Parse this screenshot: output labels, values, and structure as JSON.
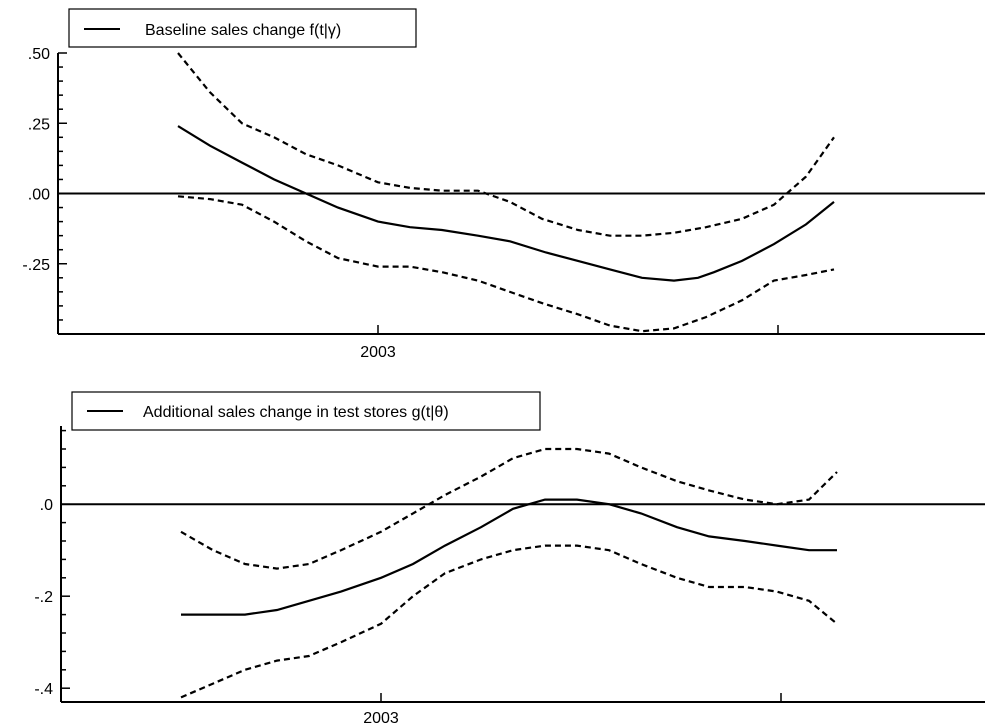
{
  "chart_data": [
    {
      "type": "line",
      "legend": "Baseline sales change f(t|γ)",
      "y_tick_labels": [
        ".50",
        ".25",
        ".00",
        "-.25"
      ],
      "y_tick_values": [
        0.5,
        0.25,
        0.0,
        -0.25
      ],
      "ylim": [
        -0.5,
        0.5
      ],
      "x_tick_labels": [
        "2003"
      ],
      "x_tick_values": [
        2003.0
      ],
      "xlim": [
        2002.25,
        2004.2
      ],
      "series": [
        {
          "role": "estimate",
          "style": "solid",
          "x": [
            2002.5,
            2002.58,
            2002.66,
            2002.74,
            2002.82,
            2002.9,
            2003.0,
            2003.08,
            2003.16,
            2003.25,
            2003.33,
            2003.42,
            2003.5,
            2003.58,
            2003.66,
            2003.74,
            2003.8,
            2003.84,
            2003.91,
            2003.99,
            2004.07,
            2004.14
          ],
          "y": [
            0.24,
            0.17,
            0.11,
            0.05,
            0.0,
            -0.05,
            -0.1,
            -0.12,
            -0.13,
            -0.15,
            -0.17,
            -0.21,
            -0.24,
            -0.27,
            -0.3,
            -0.31,
            -0.3,
            -0.28,
            -0.24,
            -0.18,
            -0.11,
            -0.03
          ]
        },
        {
          "role": "upper band",
          "style": "dashed",
          "x": [
            2002.5,
            2002.58,
            2002.66,
            2002.74,
            2002.82,
            2002.9,
            2003.0,
            2003.08,
            2003.16,
            2003.25,
            2003.33,
            2003.41,
            2003.5,
            2003.58,
            2003.66,
            2003.74,
            2003.82,
            2003.91,
            2003.99,
            2004.07,
            2004.14
          ],
          "y": [
            0.5,
            0.36,
            0.25,
            0.2,
            0.14,
            0.1,
            0.04,
            0.02,
            0.01,
            0.01,
            -0.03,
            -0.09,
            -0.13,
            -0.15,
            -0.15,
            -0.14,
            -0.12,
            -0.09,
            -0.04,
            0.06,
            0.2
          ]
        },
        {
          "role": "lower band",
          "style": "dashed",
          "x": [
            2002.5,
            2002.58,
            2002.66,
            2002.74,
            2002.82,
            2002.9,
            2003.0,
            2003.08,
            2003.16,
            2003.25,
            2003.33,
            2003.41,
            2003.5,
            2003.58,
            2003.66,
            2003.74,
            2003.82,
            2003.91,
            2003.99,
            2004.07,
            2004.14
          ],
          "y": [
            -0.01,
            -0.02,
            -0.04,
            -0.1,
            -0.17,
            -0.23,
            -0.26,
            -0.26,
            -0.28,
            -0.31,
            -0.35,
            -0.39,
            -0.43,
            -0.47,
            -0.49,
            -0.48,
            -0.44,
            -0.38,
            -0.31,
            -0.29,
            -0.27
          ]
        }
      ]
    },
    {
      "type": "line",
      "legend": "Additional sales change in test stores  g(t|θ)",
      "y_tick_labels": [
        ".0",
        "-.2",
        "-.4"
      ],
      "y_tick_values": [
        0.0,
        -0.2,
        -0.4
      ],
      "ylim": [
        -0.43,
        0.17
      ],
      "x_tick_labels": [
        "2003"
      ],
      "x_tick_values": [
        2003.0
      ],
      "xlim": [
        2002.25,
        2004.2
      ],
      "series": [
        {
          "role": "estimate",
          "style": "solid",
          "x": [
            2002.5,
            2002.58,
            2002.66,
            2002.74,
            2002.82,
            2002.9,
            2003.0,
            2003.08,
            2003.16,
            2003.25,
            2003.33,
            2003.41,
            2003.49,
            2003.57,
            2003.65,
            2003.74,
            2003.82,
            2003.91,
            2003.99,
            2004.07,
            2004.14
          ],
          "y": [
            -0.24,
            -0.24,
            -0.24,
            -0.23,
            -0.21,
            -0.19,
            -0.16,
            -0.13,
            -0.09,
            -0.05,
            -0.01,
            0.01,
            0.01,
            0.0,
            -0.02,
            -0.05,
            -0.07,
            -0.08,
            -0.09,
            -0.1,
            -0.1
          ]
        },
        {
          "role": "upper band",
          "style": "dashed",
          "x": [
            2002.5,
            2002.58,
            2002.66,
            2002.74,
            2002.82,
            2002.9,
            2003.0,
            2003.08,
            2003.16,
            2003.25,
            2003.33,
            2003.41,
            2003.49,
            2003.57,
            2003.65,
            2003.74,
            2003.82,
            2003.91,
            2003.99,
            2004.07,
            2004.14
          ],
          "y": [
            -0.06,
            -0.1,
            -0.13,
            -0.14,
            -0.13,
            -0.1,
            -0.06,
            -0.02,
            0.02,
            0.06,
            0.1,
            0.12,
            0.12,
            0.11,
            0.08,
            0.05,
            0.03,
            0.01,
            0.0,
            0.01,
            0.07
          ]
        },
        {
          "role": "lower band",
          "style": "dashed",
          "x": [
            2002.5,
            2002.58,
            2002.66,
            2002.74,
            2002.82,
            2002.9,
            2003.0,
            2003.08,
            2003.16,
            2003.25,
            2003.33,
            2003.41,
            2003.49,
            2003.57,
            2003.65,
            2003.74,
            2003.82,
            2003.91,
            2003.99,
            2004.07,
            2004.14
          ],
          "y": [
            -0.42,
            -0.39,
            -0.36,
            -0.34,
            -0.33,
            -0.3,
            -0.26,
            -0.2,
            -0.15,
            -0.12,
            -0.1,
            -0.09,
            -0.09,
            -0.1,
            -0.13,
            -0.16,
            -0.18,
            -0.18,
            -0.19,
            -0.21,
            -0.26
          ]
        }
      ]
    }
  ]
}
